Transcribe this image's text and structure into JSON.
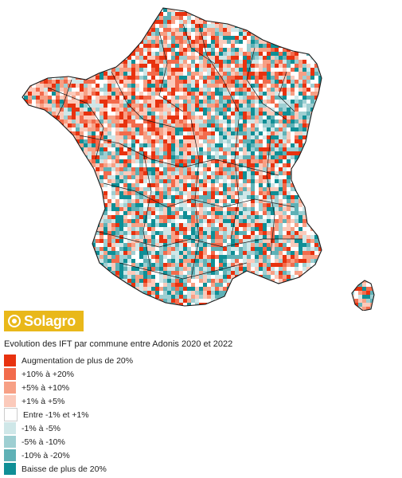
{
  "logo": {
    "text": "Solagro"
  },
  "legend": {
    "title": "Evolution des IFT par commune entre Adonis 2020 et 2022",
    "items": [
      {
        "label": "Augmentation de plus de 20%",
        "color": "#e8320f"
      },
      {
        "label": "+10% à +20%",
        "color": "#f26b4c"
      },
      {
        "label": "+5% à +10%",
        "color": "#f7a085"
      },
      {
        "label": "+1% à +5%",
        "color": "#fbcabb"
      },
      {
        "label": "Entre -1% et +1%",
        "color": "#ffffff"
      },
      {
        "label": "-1% à -5%",
        "color": "#cfe7e8"
      },
      {
        "label": "-5% à -10%",
        "color": "#9ecfd2"
      },
      {
        "label": "-10% à -20%",
        "color": "#5fb1b6"
      },
      {
        "label": "Baisse de plus de 20%",
        "color": "#0f8f96"
      }
    ]
  }
}
